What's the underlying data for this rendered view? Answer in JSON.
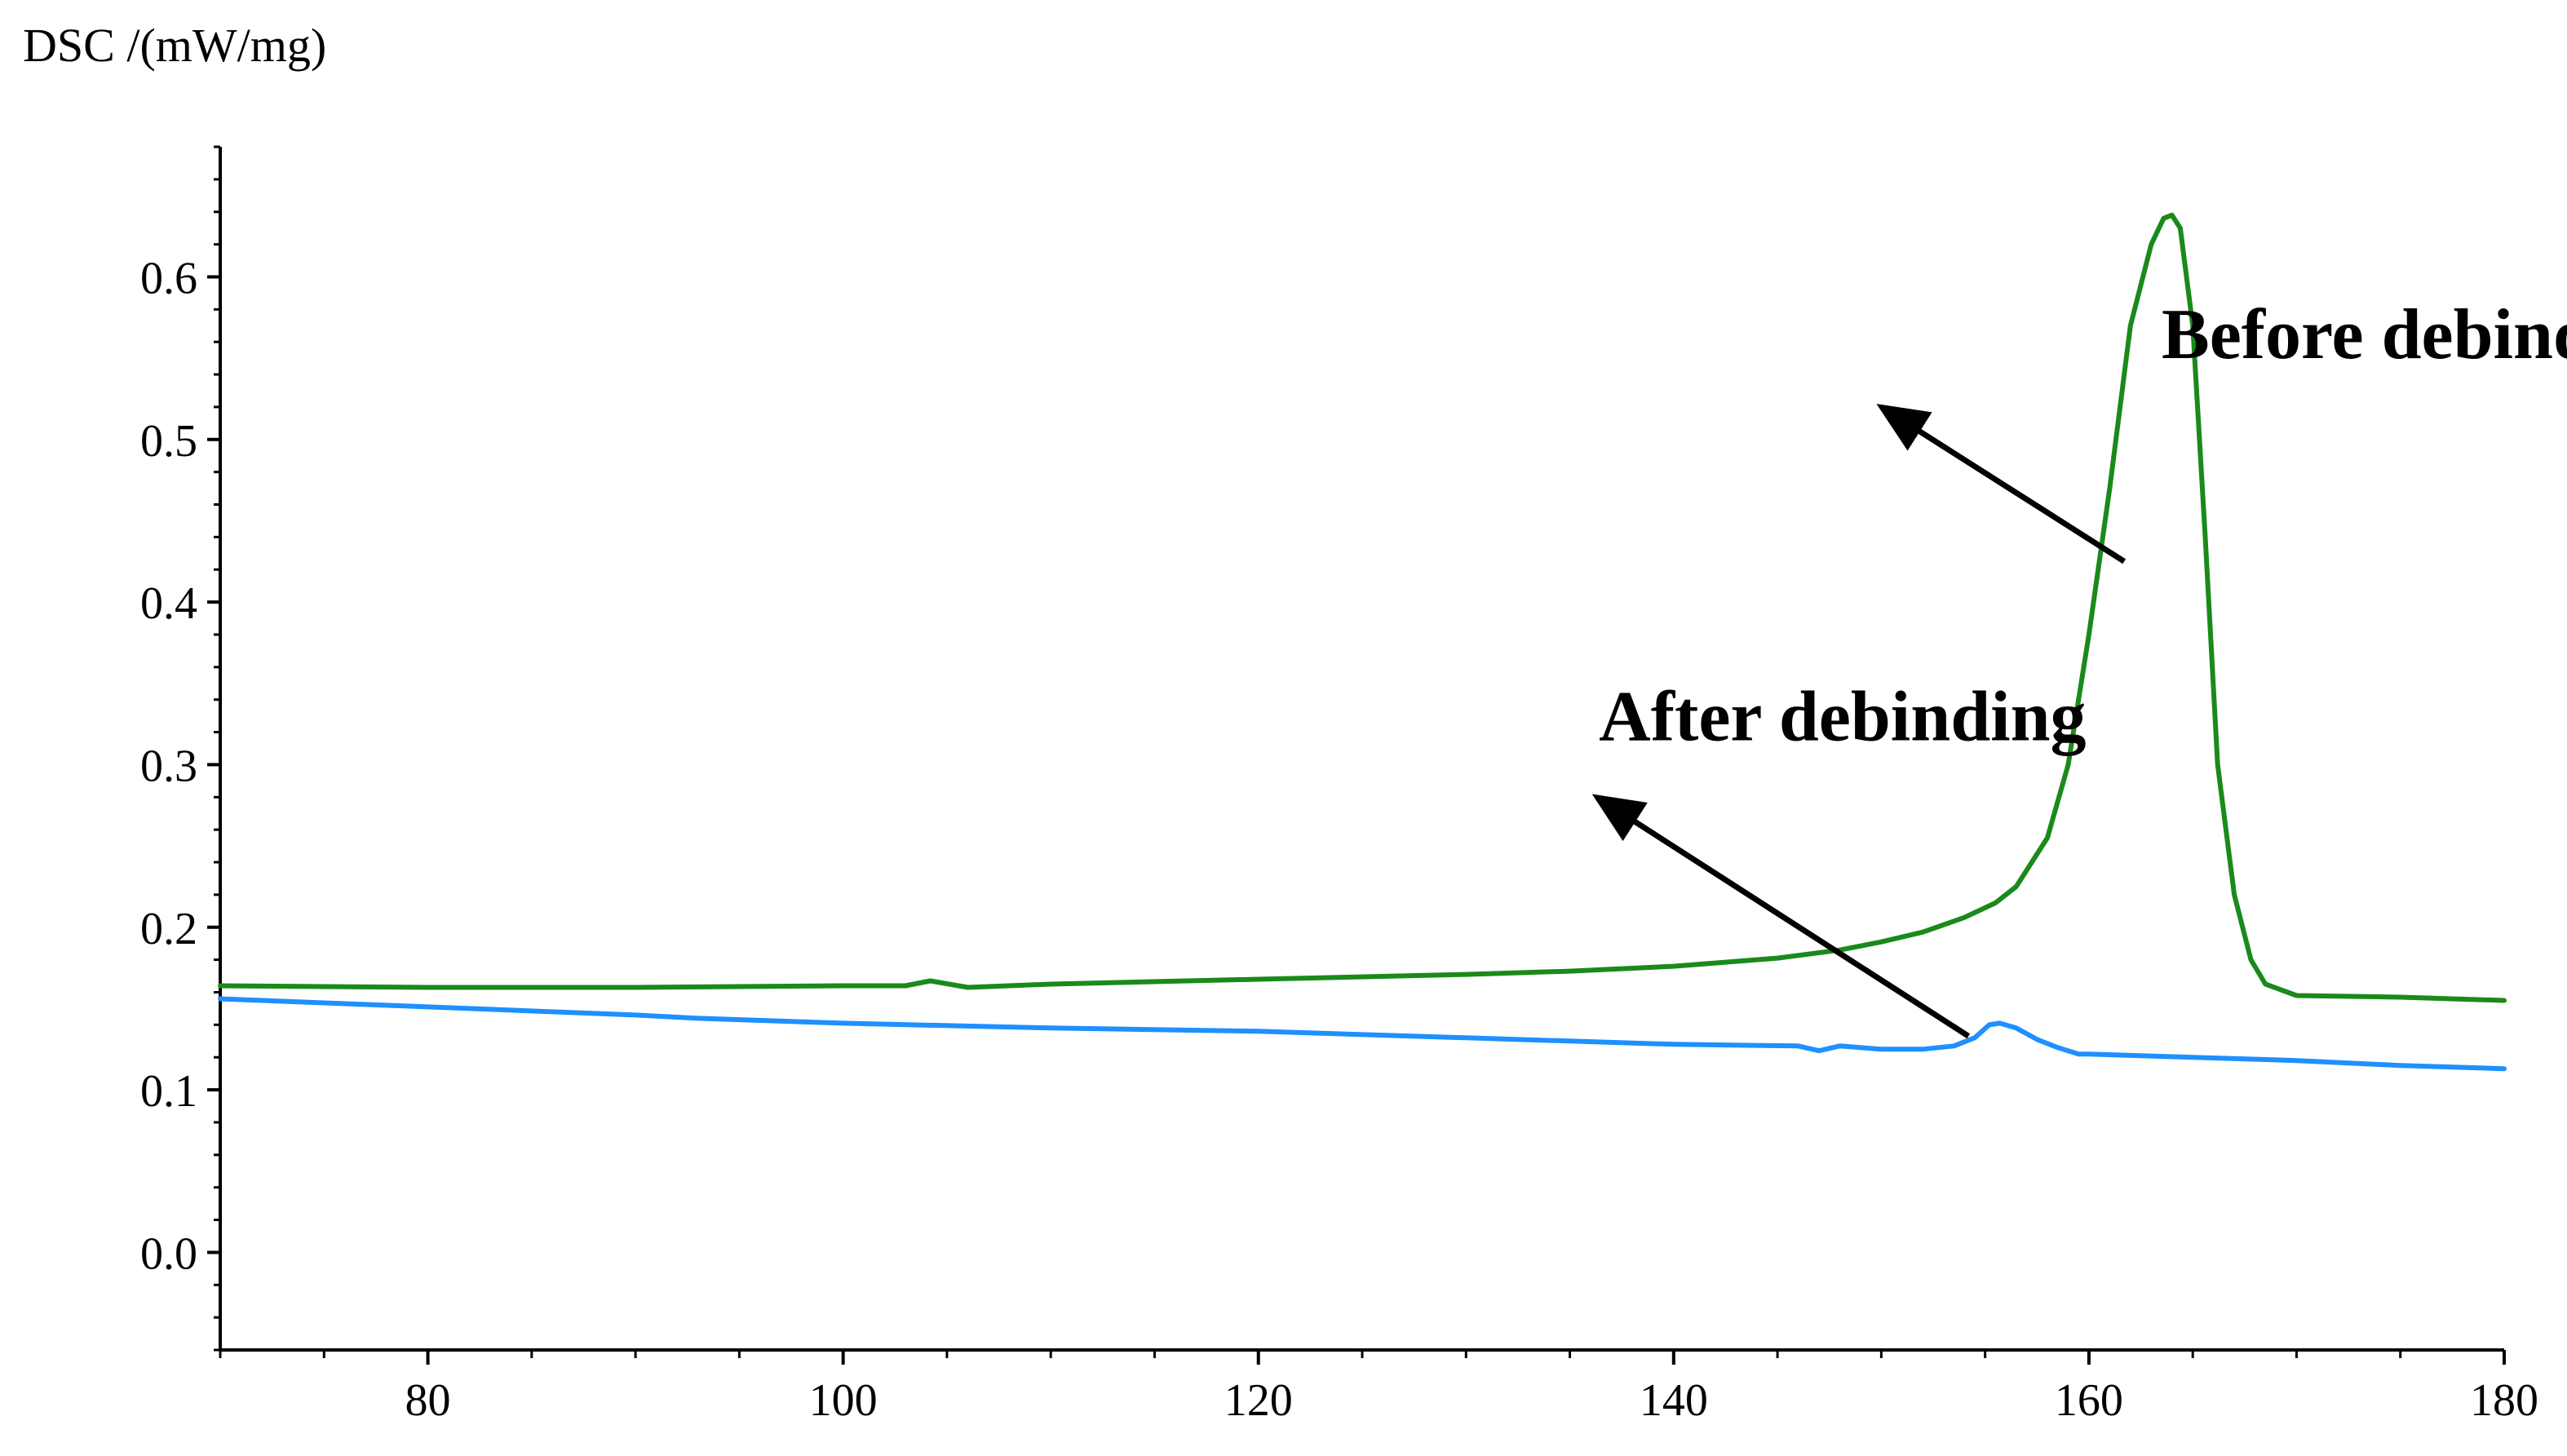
{
  "chart_data": {
    "type": "line",
    "title": "",
    "xlabel": "",
    "ylabel": "DSC /(mW/mg)",
    "xlim": [
      70,
      180
    ],
    "ylim": [
      -0.06,
      0.68
    ],
    "xticks": [
      80,
      100,
      120,
      140,
      160,
      180
    ],
    "yticks": [
      0.0,
      0.1,
      0.2,
      0.3,
      0.4,
      0.5,
      0.6
    ],
    "ytick_labels": [
      "0.0",
      "0.1",
      "0.2",
      "0.3",
      "0.4",
      "0.5",
      "0.6"
    ],
    "grid": false,
    "series": [
      {
        "color": "#1a8a1a",
        "x": [
          70,
          80,
          90,
          100,
          103,
          104.2,
          106,
          110,
          120,
          130,
          135,
          140,
          145,
          148,
          150,
          152,
          154,
          155.5,
          156.5,
          158,
          159,
          160,
          161,
          162,
          163,
          163.6,
          164,
          164.4,
          165,
          165.6,
          166.2,
          167,
          167.8,
          168.5,
          170,
          175,
          180
        ],
        "y": [
          0.164,
          0.163,
          0.163,
          0.164,
          0.164,
          0.167,
          0.163,
          0.165,
          0.168,
          0.171,
          0.173,
          0.176,
          0.181,
          0.186,
          0.191,
          0.197,
          0.206,
          0.215,
          0.225,
          0.255,
          0.3,
          0.38,
          0.47,
          0.57,
          0.62,
          0.636,
          0.638,
          0.63,
          0.57,
          0.44,
          0.3,
          0.22,
          0.18,
          0.165,
          0.158,
          0.157,
          0.155
        ]
      },
      {
        "color": "#1e90ff",
        "x": [
          70,
          80,
          90,
          93,
          100,
          110,
          120,
          130,
          140,
          146,
          147,
          148,
          150,
          152,
          153.5,
          154.5,
          155.2,
          155.7,
          156.5,
          157.5,
          158.5,
          159.5,
          160,
          165,
          170,
          175,
          180
        ],
        "y": [
          0.156,
          0.151,
          0.146,
          0.144,
          0.141,
          0.138,
          0.136,
          0.132,
          0.128,
          0.127,
          0.124,
          0.127,
          0.125,
          0.125,
          0.127,
          0.132,
          0.14,
          0.141,
          0.138,
          0.131,
          0.126,
          0.122,
          0.122,
          0.12,
          0.118,
          0.115,
          0.113
        ]
      }
    ],
    "annotations": [
      {
        "text": "Before debinding",
        "arrow_to": [
          150,
          0.52
        ],
        "arrow_from": [
          161.7,
          0.425
        ],
        "text_at": [
          163.5,
          0.55
        ]
      },
      {
        "text": "After debinding",
        "arrow_to": [
          136.3,
          0.28
        ],
        "arrow_from": [
          154.2,
          0.133
        ],
        "text_at": [
          136.4,
          0.315
        ]
      }
    ]
  }
}
